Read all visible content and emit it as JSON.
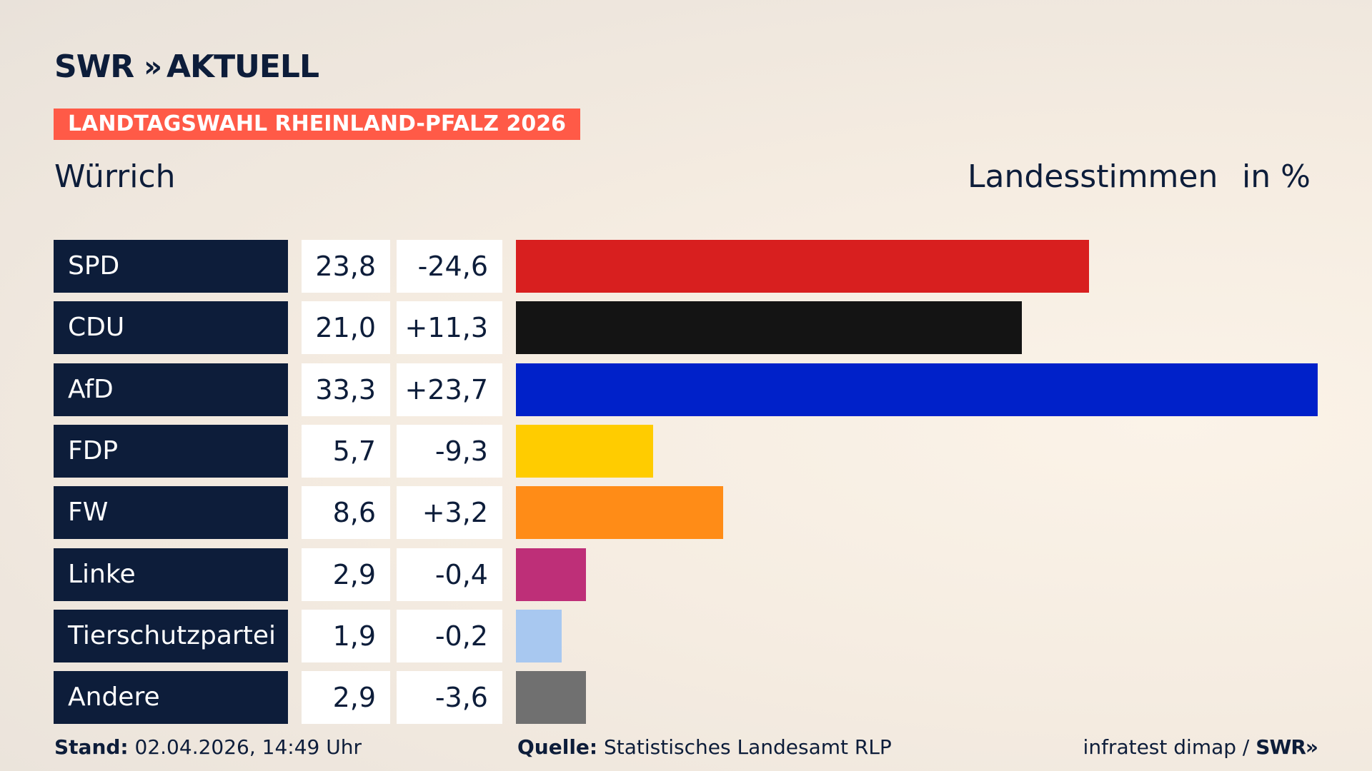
{
  "brand": {
    "name": "SWR",
    "arrows": "»",
    "program": "AKTUELL"
  },
  "election_label": "LANDTAGSWAHL RHEINLAND-PFALZ 2026",
  "municipality": "Würrich",
  "metric_label": "Landesstimmen",
  "unit_label": "in %",
  "chart_data": {
    "type": "bar",
    "orientation": "horizontal",
    "xlim": [
      0,
      33.3
    ],
    "categories": [
      "SPD",
      "CDU",
      "AfD",
      "FDP",
      "FW",
      "Linke",
      "Tierschutzpartei",
      "Andere"
    ],
    "values": [
      23.8,
      21.0,
      33.3,
      5.7,
      8.6,
      2.9,
      1.9,
      2.9
    ],
    "value_labels": [
      "23,8",
      "21,0",
      "33,3",
      "5,7",
      "8,6",
      "2,9",
      "1,9",
      "2,9"
    ],
    "change_labels": [
      "-24,6",
      "+11,3",
      "+23,7",
      "-9,3",
      "+3,2",
      "-0,4",
      "-0,2",
      "-3,6"
    ],
    "colors": [
      "#d81f1f",
      "#141414",
      "#0021c9",
      "#ffcc00",
      "#ff8c17",
      "#be2f78",
      "#a8c8f0",
      "#707070"
    ]
  },
  "footer": {
    "stand_label": "Stand:",
    "stand_value": "02.04.2026, 14:49 Uhr",
    "source_label": "Quelle:",
    "source_value": "Statistisches Landesamt RLP",
    "pollster": "infratest dimap /",
    "pollster_brand": "SWR",
    "pollster_arrows": "»"
  }
}
